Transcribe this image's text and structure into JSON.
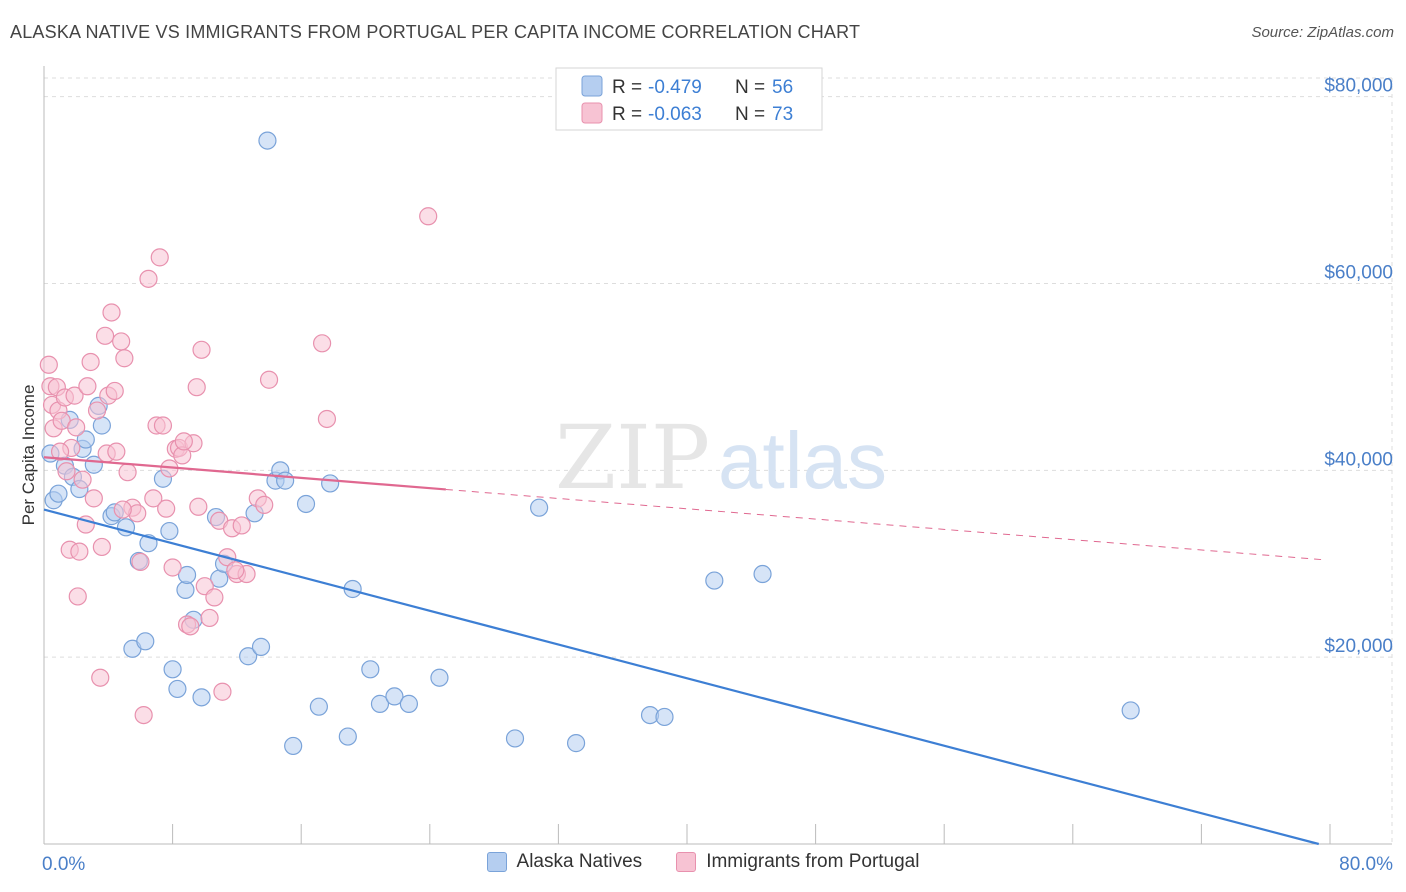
{
  "header": {
    "title": "ALASKA NATIVE VS IMMIGRANTS FROM PORTUGAL PER CAPITA INCOME CORRELATION CHART",
    "source": "Source: ZipAtlas.com"
  },
  "watermark": {
    "part1": "ZIP",
    "part2": "atlas"
  },
  "colors": {
    "blue_fill": "#b5cef0",
    "blue_stroke": "#7aa3d9",
    "blue_line": "#3d7fd4",
    "pink_fill": "#f7c3d3",
    "pink_stroke": "#e891ae",
    "pink_line": "#e06890",
    "axis_label": "#4a7fc8",
    "grid": "#dddddd"
  },
  "chart_data": {
    "type": "scatter",
    "title": "ALASKA NATIVE VS IMMIGRANTS FROM PORTUGAL PER CAPITA INCOME CORRELATION CHART",
    "xlabel": "",
    "ylabel": "Per Capita Income",
    "xlim": [
      0,
      80
    ],
    "ylim": [
      0,
      82000
    ],
    "x_tick_labels": [
      "0.0%",
      "80.0%"
    ],
    "y_ticks": [
      20000,
      40000,
      60000,
      80000
    ],
    "y_tick_labels": [
      "$20,000",
      "$40,000",
      "$60,000",
      "$80,000"
    ],
    "grid": true,
    "legend_placement": "top-center",
    "stats": [
      {
        "r_label": "R =",
        "r_value": "-0.479",
        "n_label": "N =",
        "n_value": "56"
      },
      {
        "r_label": "R =",
        "r_value": "-0.063",
        "n_label": "N =",
        "n_value": "73"
      }
    ],
    "series": [
      {
        "name": "Alaska Natives",
        "color": "#b5cef0",
        "trend": {
          "x0": 0,
          "y0": 35800,
          "x1": 79.3,
          "y1": 0,
          "dashed_from": null
        },
        "points": [
          [
            13.9,
            75300
          ],
          [
            0.4,
            41800
          ],
          [
            0.6,
            36800
          ],
          [
            0.9,
            37500
          ],
          [
            1.3,
            40500
          ],
          [
            1.6,
            45400
          ],
          [
            1.8,
            39300
          ],
          [
            2.2,
            38000
          ],
          [
            2.4,
            42300
          ],
          [
            2.6,
            43300
          ],
          [
            3.1,
            40600
          ],
          [
            3.6,
            44800
          ],
          [
            3.4,
            46900
          ],
          [
            4.2,
            35100
          ],
          [
            4.4,
            35500
          ],
          [
            5.1,
            33900
          ],
          [
            5.9,
            30300
          ],
          [
            6.5,
            32200
          ],
          [
            7.4,
            39100
          ],
          [
            7.8,
            33500
          ],
          [
            8.0,
            18700
          ],
          [
            8.3,
            16600
          ],
          [
            8.8,
            27200
          ],
          [
            8.9,
            28800
          ],
          [
            9.3,
            24000
          ],
          [
            9.8,
            15700
          ],
          [
            10.7,
            35000
          ],
          [
            10.9,
            28400
          ],
          [
            11.2,
            30000
          ],
          [
            12.7,
            20100
          ],
          [
            13.1,
            35400
          ],
          [
            13.5,
            21100
          ],
          [
            14.4,
            38900
          ],
          [
            14.7,
            40000
          ],
          [
            15.0,
            38900
          ],
          [
            15.5,
            10500
          ],
          [
            16.3,
            36400
          ],
          [
            17.1,
            14700
          ],
          [
            17.8,
            38600
          ],
          [
            18.9,
            11500
          ],
          [
            19.2,
            27300
          ],
          [
            20.3,
            18700
          ],
          [
            20.9,
            15000
          ],
          [
            21.8,
            15800
          ],
          [
            22.7,
            15000
          ],
          [
            24.6,
            17800
          ],
          [
            5.5,
            20900
          ],
          [
            6.3,
            21700
          ],
          [
            29.3,
            11300
          ],
          [
            30.8,
            36000
          ],
          [
            33.1,
            10800
          ],
          [
            37.7,
            13800
          ],
          [
            38.6,
            13600
          ],
          [
            41.7,
            28200
          ],
          [
            44.7,
            28900
          ],
          [
            67.6,
            14300
          ]
        ]
      },
      {
        "name": "Immigrants from Portugal",
        "color": "#f7c3d3",
        "trend": {
          "x0": 0,
          "y0": 41400,
          "x1": 79.8,
          "y1": 30400,
          "dashed_from": 25
        },
        "points": [
          [
            0.3,
            51300
          ],
          [
            0.4,
            49000
          ],
          [
            0.5,
            47000
          ],
          [
            0.6,
            44500
          ],
          [
            0.8,
            48900
          ],
          [
            0.9,
            46400
          ],
          [
            1.1,
            45300
          ],
          [
            1.3,
            47800
          ],
          [
            1.4,
            39900
          ],
          [
            1.6,
            31500
          ],
          [
            1.7,
            42400
          ],
          [
            1.9,
            48000
          ],
          [
            2.0,
            44600
          ],
          [
            2.2,
            31300
          ],
          [
            2.1,
            26500
          ],
          [
            2.4,
            39000
          ],
          [
            2.7,
            49000
          ],
          [
            2.9,
            51600
          ],
          [
            3.1,
            37000
          ],
          [
            3.3,
            46400
          ],
          [
            3.5,
            17800
          ],
          [
            3.6,
            31800
          ],
          [
            3.8,
            54400
          ],
          [
            3.9,
            41800
          ],
          [
            4.0,
            48000
          ],
          [
            4.2,
            56900
          ],
          [
            4.4,
            48500
          ],
          [
            4.5,
            42000
          ],
          [
            4.8,
            53800
          ],
          [
            5.0,
            52000
          ],
          [
            5.2,
            39800
          ],
          [
            5.5,
            36000
          ],
          [
            5.8,
            35400
          ],
          [
            6.2,
            13800
          ],
          [
            6.5,
            60500
          ],
          [
            6.8,
            37000
          ],
          [
            7.0,
            44800
          ],
          [
            7.2,
            62800
          ],
          [
            7.4,
            44800
          ],
          [
            7.6,
            35900
          ],
          [
            7.8,
            40200
          ],
          [
            8.0,
            29600
          ],
          [
            8.2,
            42300
          ],
          [
            8.4,
            42400
          ],
          [
            8.6,
            41600
          ],
          [
            8.9,
            23500
          ],
          [
            9.1,
            23300
          ],
          [
            9.3,
            42900
          ],
          [
            9.5,
            48900
          ],
          [
            9.8,
            52900
          ],
          [
            9.6,
            36100
          ],
          [
            10.0,
            27600
          ],
          [
            10.3,
            24200
          ],
          [
            10.6,
            26400
          ],
          [
            10.9,
            34600
          ],
          [
            11.1,
            16300
          ],
          [
            11.4,
            30700
          ],
          [
            11.7,
            33800
          ],
          [
            12.0,
            28900
          ],
          [
            12.3,
            34100
          ],
          [
            12.6,
            28900
          ],
          [
            13.3,
            37000
          ],
          [
            13.7,
            36300
          ],
          [
            14.0,
            49700
          ],
          [
            17.3,
            53600
          ],
          [
            17.6,
            45500
          ],
          [
            23.9,
            67200
          ],
          [
            1.0,
            42000
          ],
          [
            2.6,
            34200
          ],
          [
            4.9,
            35800
          ],
          [
            6.0,
            30200
          ],
          [
            11.9,
            29300
          ],
          [
            8.7,
            43100
          ]
        ]
      }
    ]
  }
}
